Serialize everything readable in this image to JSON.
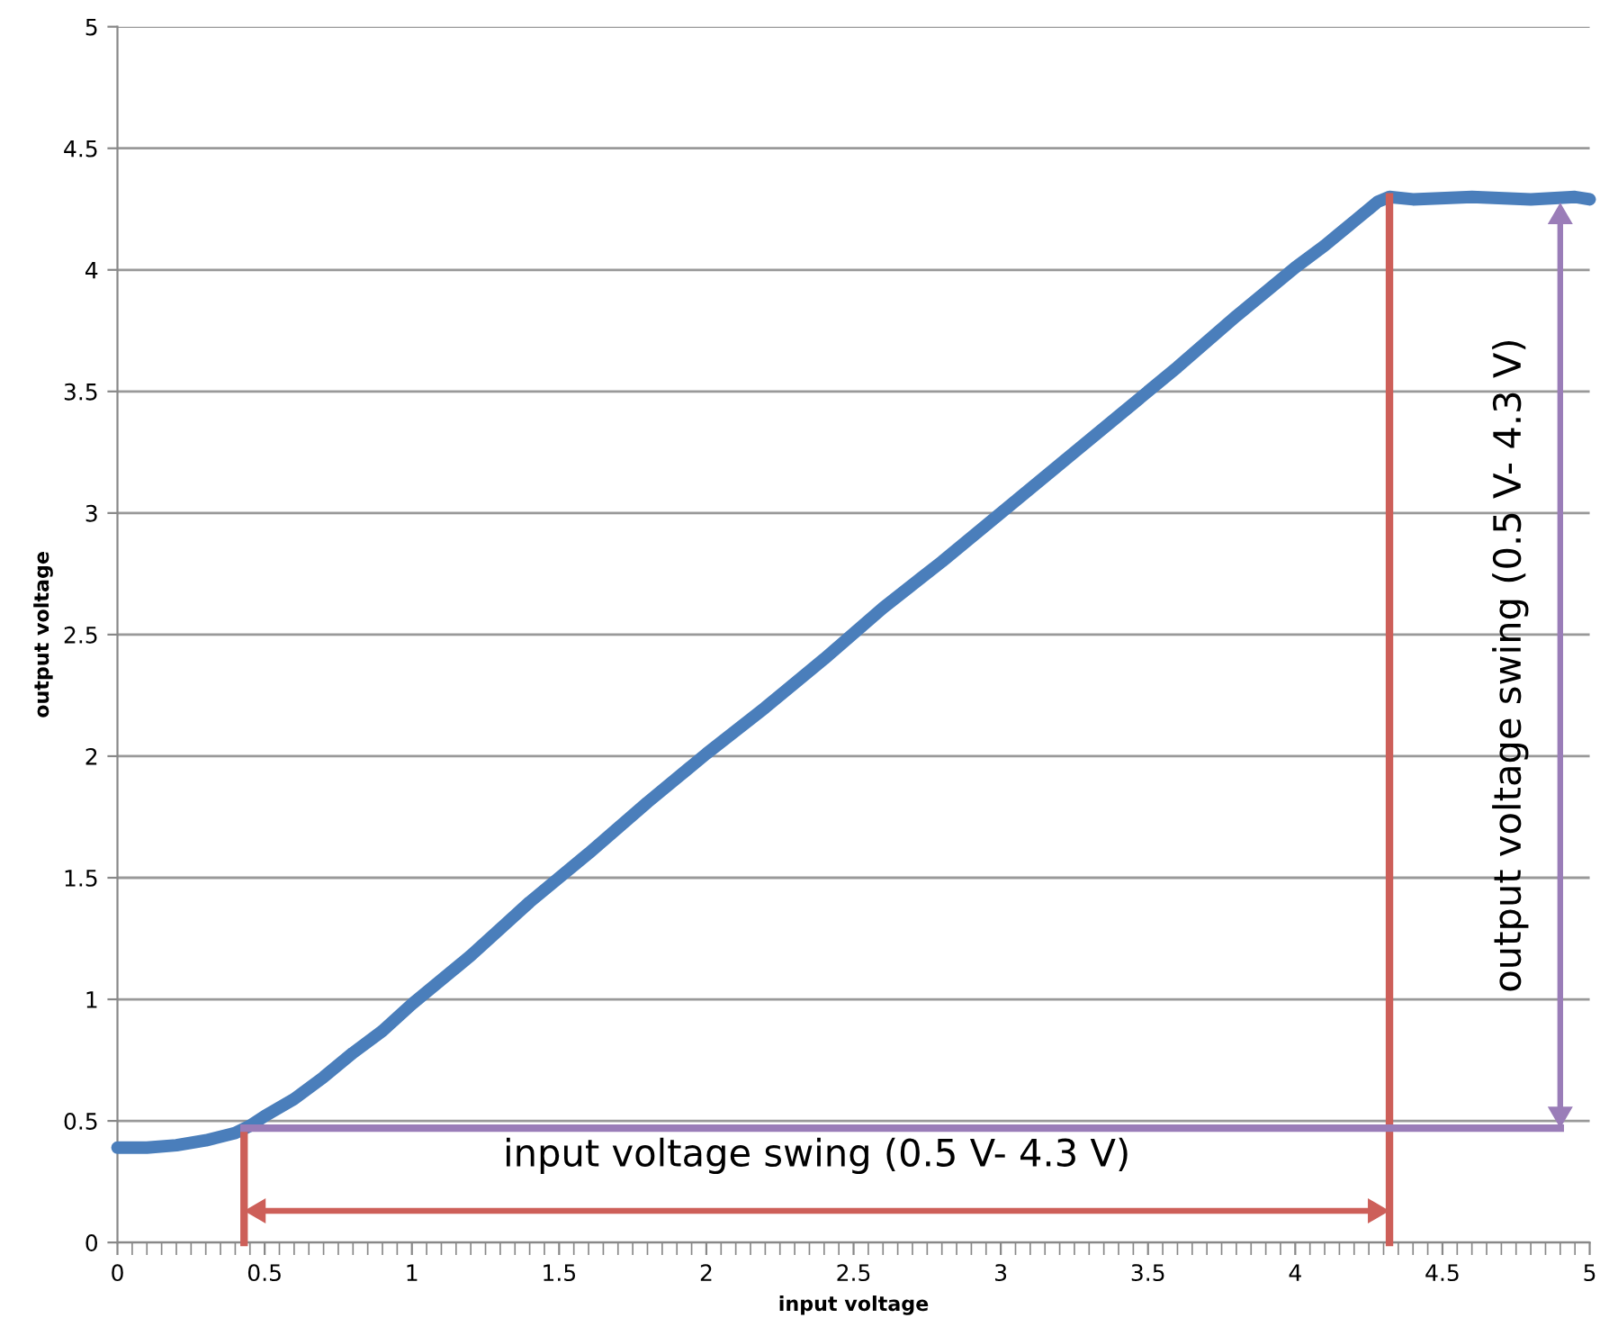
{
  "chart_data": {
    "type": "line",
    "xlabel": "input voltage",
    "ylabel": "output voltage",
    "x": [
      0,
      0.1,
      0.2,
      0.3,
      0.4,
      0.45,
      0.5,
      0.6,
      0.7,
      0.8,
      0.9,
      1.0,
      1.2,
      1.4,
      1.6,
      1.8,
      2.0,
      2.2,
      2.4,
      2.6,
      2.8,
      3.0,
      3.2,
      3.4,
      3.6,
      3.8,
      4.0,
      4.1,
      4.2,
      4.28,
      4.32,
      4.4,
      4.6,
      4.8,
      4.95,
      5
    ],
    "series": [
      {
        "color": "#4a7ebb",
        "values": [
          0.39,
          0.39,
          0.4,
          0.42,
          0.45,
          0.48,
          0.52,
          0.59,
          0.68,
          0.78,
          0.87,
          0.98,
          1.18,
          1.4,
          1.6,
          1.81,
          2.01,
          2.2,
          2.4,
          2.61,
          2.8,
          3.0,
          3.2,
          3.4,
          3.6,
          3.81,
          4.01,
          4.1,
          4.2,
          4.28,
          4.3,
          4.29,
          4.3,
          4.29,
          4.3,
          4.29
        ]
      }
    ],
    "xlim": [
      0,
      5
    ],
    "ylim": [
      0,
      5
    ],
    "xticks": [
      0,
      0.5,
      1,
      1.5,
      2,
      2.5,
      3,
      3.5,
      4,
      4.5,
      5
    ],
    "yticks": [
      0,
      0.5,
      1,
      1.5,
      2,
      2.5,
      3,
      3.5,
      4,
      4.5,
      5
    ],
    "grid": "y",
    "marker": "none",
    "line_style": "solid",
    "ref_lines": [
      {
        "axis": "x",
        "value": 0.43,
        "color": "#cd5f59"
      },
      {
        "axis": "x",
        "value": 4.32,
        "color": "#cd5f59"
      },
      {
        "axis": "y",
        "value": 0.47,
        "color": "#9a7db8"
      }
    ],
    "annotations": [
      "input voltage swing (0.5 V- 4.3 V)",
      "output voltage swing (0.5 V- 4.3 V)"
    ]
  }
}
